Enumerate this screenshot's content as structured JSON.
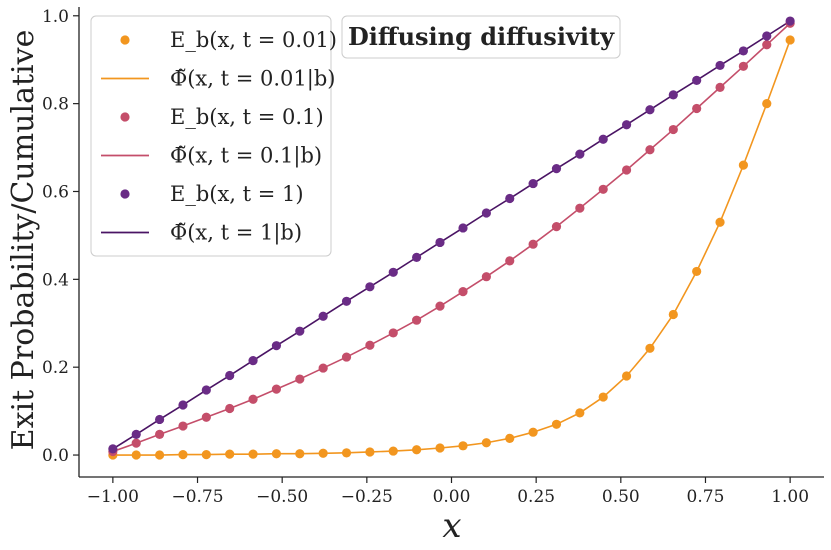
{
  "chart_data": {
    "type": "line",
    "title": "Diffusing diffusivity",
    "xlabel": "x",
    "ylabel": "Exit Probability/Cumulative",
    "xlim": [
      -1.1,
      1.1
    ],
    "ylim": [
      -0.05,
      1.02
    ],
    "xticks": [
      -1.0,
      -0.75,
      -0.5,
      -0.25,
      0.0,
      0.25,
      0.5,
      0.75,
      1.0
    ],
    "xtick_labels": [
      "−1.00",
      "−0.75",
      "−0.50",
      "−0.25",
      "0.00",
      "0.25",
      "0.50",
      "0.75",
      "1.00"
    ],
    "yticks": [
      0.0,
      0.2,
      0.4,
      0.6,
      0.8,
      1.0
    ],
    "ytick_labels": [
      "0.0",
      "0.2",
      "0.4",
      "0.6",
      "0.8",
      "1.0"
    ],
    "grid": false,
    "legend_position": "top-left",
    "x": [
      -1.0,
      -0.931,
      -0.862,
      -0.793,
      -0.724,
      -0.655,
      -0.586,
      -0.517,
      -0.448,
      -0.379,
      -0.31,
      -0.241,
      -0.172,
      -0.103,
      -0.034,
      0.034,
      0.103,
      0.172,
      0.241,
      0.31,
      0.379,
      0.448,
      0.517,
      0.586,
      0.655,
      0.724,
      0.793,
      0.862,
      0.931,
      1.0
    ],
    "series": [
      {
        "name": "E_b(x, t = 0.01)",
        "kind": "points",
        "color": "#f2961f",
        "values": [
          0.0,
          0.0,
          0.0,
          0.001,
          0.001,
          0.002,
          0.002,
          0.003,
          0.003,
          0.004,
          0.005,
          0.007,
          0.009,
          0.012,
          0.016,
          0.021,
          0.028,
          0.038,
          0.052,
          0.07,
          0.096,
          0.132,
          0.18,
          0.243,
          0.32,
          0.418,
          0.53,
          0.66,
          0.8,
          0.945
        ]
      },
      {
        "name": "Φ̃(x, t = 0.01|b)",
        "kind": "line",
        "color": "#f2961f",
        "values": [
          0.0,
          0.0,
          0.0,
          0.001,
          0.001,
          0.002,
          0.002,
          0.003,
          0.003,
          0.004,
          0.005,
          0.007,
          0.009,
          0.012,
          0.016,
          0.021,
          0.028,
          0.038,
          0.052,
          0.07,
          0.096,
          0.132,
          0.18,
          0.243,
          0.32,
          0.418,
          0.53,
          0.66,
          0.8,
          0.945
        ]
      },
      {
        "name": "E_b(x, t = 0.1)",
        "kind": "points",
        "color": "#c44e6a",
        "values": [
          0.008,
          0.027,
          0.047,
          0.066,
          0.086,
          0.106,
          0.127,
          0.15,
          0.173,
          0.198,
          0.223,
          0.25,
          0.278,
          0.307,
          0.339,
          0.372,
          0.406,
          0.442,
          0.48,
          0.52,
          0.562,
          0.605,
          0.649,
          0.695,
          0.741,
          0.789,
          0.837,
          0.885,
          0.934,
          0.983
        ]
      },
      {
        "name": "Φ̃(x, t = 0.1|b)",
        "kind": "line",
        "color": "#c44e6a",
        "values": [
          0.008,
          0.027,
          0.047,
          0.066,
          0.086,
          0.106,
          0.127,
          0.15,
          0.173,
          0.198,
          0.223,
          0.25,
          0.278,
          0.307,
          0.339,
          0.372,
          0.406,
          0.442,
          0.48,
          0.52,
          0.562,
          0.605,
          0.649,
          0.695,
          0.741,
          0.789,
          0.837,
          0.885,
          0.934,
          0.983
        ]
      },
      {
        "name": "E_b(x, t = 1)",
        "kind": "points",
        "color": "#6a2c86",
        "values": [
          0.014,
          0.047,
          0.081,
          0.114,
          0.148,
          0.181,
          0.215,
          0.249,
          0.282,
          0.316,
          0.35,
          0.383,
          0.416,
          0.45,
          0.484,
          0.517,
          0.551,
          0.584,
          0.618,
          0.652,
          0.685,
          0.719,
          0.752,
          0.786,
          0.82,
          0.853,
          0.887,
          0.92,
          0.954,
          0.988
        ]
      },
      {
        "name": "Φ̃(x, t = 1|b)",
        "kind": "line",
        "color": "#4a1464",
        "values": [
          0.014,
          0.047,
          0.081,
          0.114,
          0.148,
          0.181,
          0.215,
          0.249,
          0.282,
          0.316,
          0.35,
          0.383,
          0.416,
          0.45,
          0.484,
          0.517,
          0.551,
          0.584,
          0.618,
          0.652,
          0.685,
          0.719,
          0.752,
          0.786,
          0.82,
          0.853,
          0.887,
          0.92,
          0.954,
          0.988
        ]
      }
    ]
  },
  "colors": {
    "axis": "#222222",
    "legend_border": "#cccccc",
    "background": "#ffffff"
  }
}
